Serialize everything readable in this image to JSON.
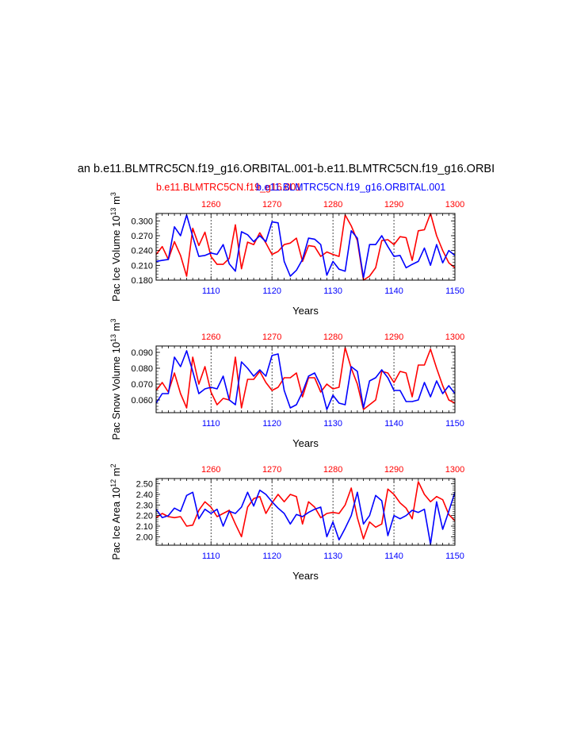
{
  "title": "an b.e11.BLMTRC5CN.f19_g16.ORBITAL.001-b.e11.BLMTRC5CN.f19_g16.ORBI",
  "legend": {
    "red_label": "b.e11.BLMTRC5CN.f19_g16.001",
    "blue_label": "b.e11.BLMTRC5CN.f19_g16.ORBITAL.001"
  },
  "colors": {
    "red": "#ff0000",
    "blue": "#0000ff",
    "axis": "#000000"
  },
  "chart_data": [
    {
      "type": "line",
      "ylabel": "Pac Ice Volume 10^13 m^3",
      "ylabel_base": "Pac Ice Volume 10",
      "ylabel_exp": "13",
      "ylabel_unit": " m",
      "ylabel_unit_exp": "3",
      "xlabel": "Years",
      "bottom_axis": {
        "range": [
          1101,
          1150
        ],
        "ticks": [
          1110,
          1120,
          1130,
          1140,
          1150
        ],
        "labels": [
          "1110",
          "1120",
          "1130",
          "1140",
          "1150"
        ]
      },
      "top_axis": {
        "range": [
          1251,
          1300
        ],
        "ticks": [
          1260,
          1270,
          1280,
          1290,
          1300
        ],
        "labels": [
          "1260",
          "1270",
          "1280",
          "1290",
          "1300"
        ]
      },
      "ylim": [
        0.18,
        0.315
      ],
      "yticks": [
        0.18,
        0.21,
        0.24,
        0.27,
        0.3
      ],
      "ytick_labels": [
        "0.180",
        "0.210",
        "0.240",
        "0.270",
        "0.300"
      ],
      "series": [
        {
          "name": "b.e11.BLMTRC5CN.f19_g16.001",
          "color": "red",
          "axis": "top",
          "values": [
            0.232,
            0.248,
            0.222,
            0.258,
            0.23,
            0.188,
            0.285,
            0.25,
            0.277,
            0.228,
            0.212,
            0.212,
            0.224,
            0.292,
            0.203,
            0.257,
            0.252,
            0.276,
            0.255,
            0.232,
            0.238,
            0.252,
            0.255,
            0.265,
            0.218,
            0.25,
            0.248,
            0.228,
            0.237,
            0.232,
            0.228,
            0.312,
            0.29,
            0.26,
            0.18,
            0.188,
            0.205,
            0.26,
            0.262,
            0.252,
            0.268,
            0.266,
            0.22,
            0.28,
            0.282,
            0.315,
            0.27,
            0.24,
            0.215,
            0.205
          ]
        },
        {
          "name": "b.e11.BLMTRC5CN.f19_g16.ORBITAL.001",
          "color": "blue",
          "axis": "bottom",
          "values": [
            0.218,
            0.22,
            0.222,
            0.288,
            0.27,
            0.312,
            0.268,
            0.228,
            0.23,
            0.235,
            0.232,
            0.252,
            0.213,
            0.198,
            0.278,
            0.272,
            0.258,
            0.27,
            0.258,
            0.298,
            0.296,
            0.218,
            0.188,
            0.2,
            0.222,
            0.265,
            0.263,
            0.252,
            0.19,
            0.218,
            0.202,
            0.198,
            0.28,
            0.265,
            0.185,
            0.252,
            0.252,
            0.27,
            0.248,
            0.228,
            0.23,
            0.205,
            0.212,
            0.218,
            0.245,
            0.21,
            0.252,
            0.215,
            0.24,
            0.23
          ]
        }
      ]
    },
    {
      "type": "line",
      "ylabel": "Pac Snow Volume 10^13 m^3",
      "ylabel_base": "Pac Snow Volume 10",
      "ylabel_exp": "13",
      "ylabel_unit": " m",
      "ylabel_unit_exp": "3",
      "xlabel": "Years",
      "bottom_axis": {
        "range": [
          1101,
          1150
        ],
        "ticks": [
          1110,
          1120,
          1130,
          1140,
          1150
        ],
        "labels": [
          "1110",
          "1120",
          "1130",
          "1140",
          "1150"
        ]
      },
      "top_axis": {
        "range": [
          1251,
          1300
        ],
        "ticks": [
          1260,
          1270,
          1280,
          1290,
          1300
        ],
        "labels": [
          "1260",
          "1270",
          "1280",
          "1290",
          "1300"
        ]
      },
      "ylim": [
        0.052,
        0.094
      ],
      "yticks": [
        0.06,
        0.07,
        0.08,
        0.09
      ],
      "ytick_labels": [
        "0.060",
        "0.070",
        "0.080",
        "0.090"
      ],
      "series": [
        {
          "name": "b.e11.BLMTRC5CN.f19_g16.001",
          "color": "red",
          "axis": "top",
          "values": [
            0.066,
            0.071,
            0.065,
            0.077,
            0.064,
            0.055,
            0.087,
            0.07,
            0.081,
            0.065,
            0.057,
            0.061,
            0.06,
            0.087,
            0.055,
            0.073,
            0.073,
            0.078,
            0.071,
            0.066,
            0.068,
            0.074,
            0.074,
            0.077,
            0.062,
            0.074,
            0.074,
            0.065,
            0.07,
            0.067,
            0.068,
            0.093,
            0.08,
            0.07,
            0.054,
            0.057,
            0.06,
            0.078,
            0.077,
            0.071,
            0.078,
            0.077,
            0.062,
            0.082,
            0.082,
            0.092,
            0.08,
            0.069,
            0.06,
            0.058
          ]
        },
        {
          "name": "b.e11.BLMTRC5CN.f19_g16.ORBITAL.001",
          "color": "blue",
          "axis": "bottom",
          "values": [
            0.058,
            0.064,
            0.064,
            0.087,
            0.081,
            0.091,
            0.078,
            0.064,
            0.067,
            0.068,
            0.067,
            0.075,
            0.06,
            0.057,
            0.084,
            0.08,
            0.075,
            0.079,
            0.075,
            0.088,
            0.089,
            0.066,
            0.055,
            0.057,
            0.065,
            0.075,
            0.077,
            0.069,
            0.054,
            0.063,
            0.058,
            0.057,
            0.081,
            0.078,
            0.055,
            0.072,
            0.074,
            0.079,
            0.074,
            0.066,
            0.066,
            0.059,
            0.059,
            0.06,
            0.071,
            0.062,
            0.072,
            0.064,
            0.069,
            0.064
          ]
        }
      ]
    },
    {
      "type": "line",
      "ylabel": "Pac Ice Area 10^12 m^2",
      "ylabel_base": "Pac Ice Area 10",
      "ylabel_exp": "12",
      "ylabel_unit": " m",
      "ylabel_unit_exp": "2",
      "xlabel": "Years",
      "bottom_axis": {
        "range": [
          1101,
          1150
        ],
        "ticks": [
          1110,
          1120,
          1130,
          1140,
          1150
        ],
        "labels": [
          "1110",
          "1120",
          "1130",
          "1140",
          "1150"
        ]
      },
      "top_axis": {
        "range": [
          1251,
          1300
        ],
        "ticks": [
          1260,
          1270,
          1280,
          1290,
          1300
        ],
        "labels": [
          "1260",
          "1270",
          "1280",
          "1290",
          "1300"
        ]
      },
      "ylim": [
        1.92,
        2.55
      ],
      "yticks": [
        2.0,
        2.1,
        2.2,
        2.3,
        2.4,
        2.5
      ],
      "ytick_labels": [
        "2.00",
        "2.10",
        "2.20",
        "2.30",
        "2.40",
        "2.50"
      ],
      "series": [
        {
          "name": "b.e11.BLMTRC5CN.f19_g16.001",
          "color": "red",
          "axis": "top",
          "values": [
            2.18,
            2.22,
            2.19,
            2.18,
            2.19,
            2.1,
            2.11,
            2.25,
            2.33,
            2.28,
            2.19,
            2.22,
            2.25,
            2.12,
            2.0,
            2.28,
            2.36,
            2.38,
            2.22,
            2.32,
            2.4,
            2.33,
            2.4,
            2.38,
            2.12,
            2.33,
            2.28,
            2.18,
            2.22,
            2.23,
            2.22,
            2.3,
            2.46,
            2.18,
            1.98,
            2.14,
            2.09,
            2.12,
            2.45,
            2.4,
            2.32,
            2.27,
            2.17,
            2.52,
            2.4,
            2.33,
            2.38,
            2.35,
            2.21,
            2.15
          ]
        },
        {
          "name": "b.e11.BLMTRC5CN.f19_g16.ORBITAL.001",
          "color": "blue",
          "axis": "bottom",
          "values": [
            2.26,
            2.18,
            2.2,
            2.27,
            2.24,
            2.39,
            2.42,
            2.17,
            2.26,
            2.22,
            2.26,
            2.1,
            2.24,
            2.22,
            2.28,
            2.42,
            2.29,
            2.44,
            2.4,
            2.33,
            2.27,
            2.22,
            2.12,
            2.21,
            2.19,
            2.23,
            2.26,
            2.28,
            2.0,
            2.14,
            1.97,
            2.08,
            2.2,
            2.42,
            2.12,
            2.2,
            2.39,
            2.34,
            2.01,
            2.2,
            2.17,
            2.2,
            2.25,
            2.23,
            2.26,
            1.93,
            2.33,
            2.07,
            2.24,
            2.42
          ]
        }
      ]
    }
  ]
}
